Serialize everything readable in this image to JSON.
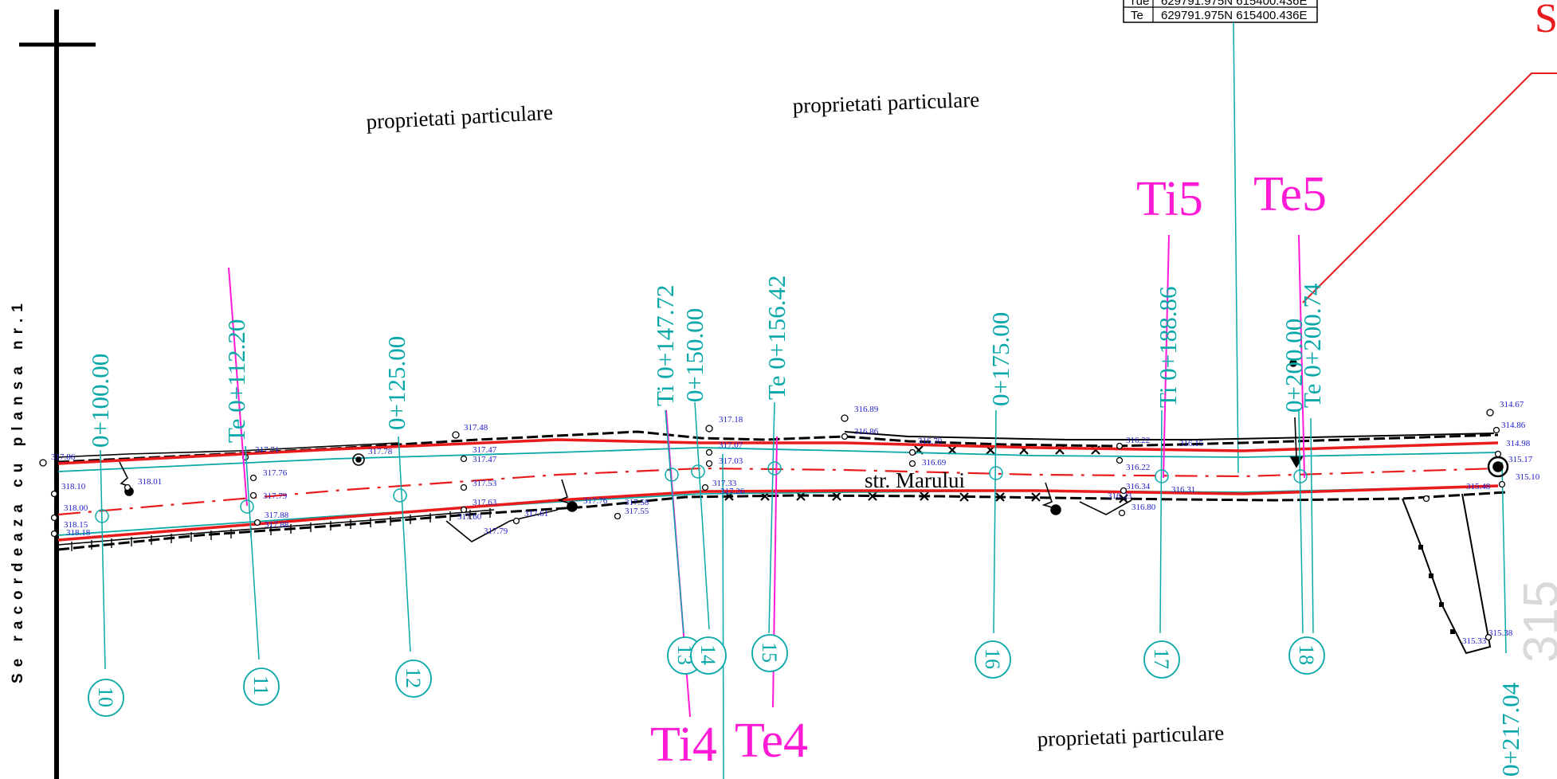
{
  "sidenote": "Se racordeaza cu plansa nr.1",
  "street_name": "str. Marului",
  "property_labels": [
    "proprietati particulare",
    "proprietati particulare",
    "proprietati particulare"
  ],
  "coord_table": {
    "rows": [
      {
        "label": "Tue",
        "coords": "629791.975N 615400.436E"
      },
      {
        "label": "Te",
        "coords": "629791.975N 615400.436E"
      }
    ]
  },
  "red_label_fragment": "S",
  "ghost_number": "315",
  "chainages": [
    "0+100.00",
    "Te 0+112.20",
    "0+125.00",
    "Ti 0+147.72",
    "0+150.00",
    "Te 0+156.42",
    "0+175.00",
    "Ti 0+188.86",
    "0+200.00",
    "Te 0+200.74",
    "0+217.04"
  ],
  "curve_points": [
    "Ti4",
    "Te4",
    "Ti5",
    "Te5"
  ],
  "cross_sections": [
    "10",
    "11",
    "12",
    "13",
    "14",
    "15",
    "16",
    "17",
    "18"
  ],
  "elevations": [
    "317.86",
    "318.10",
    "318.00",
    "318.15",
    "318.18",
    "318.01",
    "317.71",
    "317.76",
    "317.79",
    "317.88",
    "317.88",
    "317.78",
    "317.48",
    "317.47",
    "317.47",
    "317.53",
    "317.63",
    "317.60",
    "317.79",
    "317.61",
    "317.76",
    "317.58",
    "317.55",
    "317.18",
    "317.07",
    "317.03",
    "317.33",
    "317.26",
    "316.89",
    "316.86",
    "316.70",
    "316.69",
    "316.22",
    "316.22",
    "316.15",
    "316.34",
    "316.31",
    "316.23",
    "316.80",
    "314.67",
    "314.86",
    "314.98",
    "315.17",
    "315.10",
    "315.48",
    "315.33",
    "315.38"
  ],
  "colors": {
    "axis": "#e81c1c",
    "chainage": "#0aa8a8",
    "curve": "#ff1bd6",
    "elevation": "#1c1cc8",
    "road_edge": "#000000"
  }
}
